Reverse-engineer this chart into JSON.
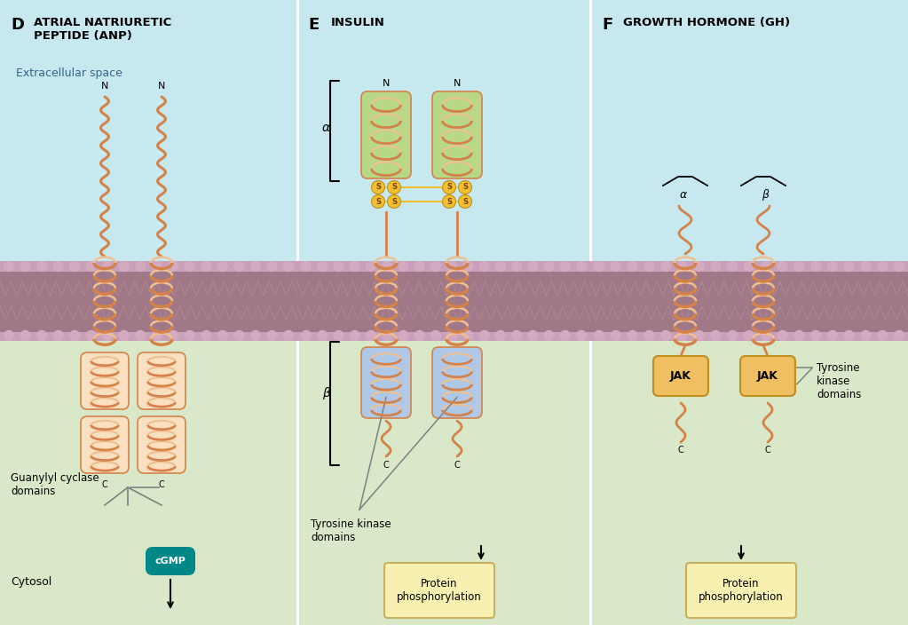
{
  "bg_color": "#f5f5f0",
  "extracellular_color": "#c8e8f0",
  "cytosol_color": "#d8e8c8",
  "membrane_top_color": "#d4a8c0",
  "membrane_mid_color": "#b08898",
  "membrane_bot_color": "#d4a8c0",
  "helix_color": "#d4824a",
  "helix_light": "#f0c090",
  "helix_bg_green": "#b8d888",
  "helix_bg_blue": "#b0c8e8",
  "jak_color": "#f0c060",
  "cgmp_color": "#008888",
  "protein_box_color": "#f8f0b0",
  "protein_box_border": "#c8b060",
  "panel_D_title": "ATRIAL NATRIURETIC\nPEPTIDE (ANP)",
  "panel_E_title": "INSULIN",
  "panel_F_title": "GROWTH HORMONE (GH)",
  "extracellular_label": "Extracellular space",
  "cytosol_label": "Cytosol"
}
